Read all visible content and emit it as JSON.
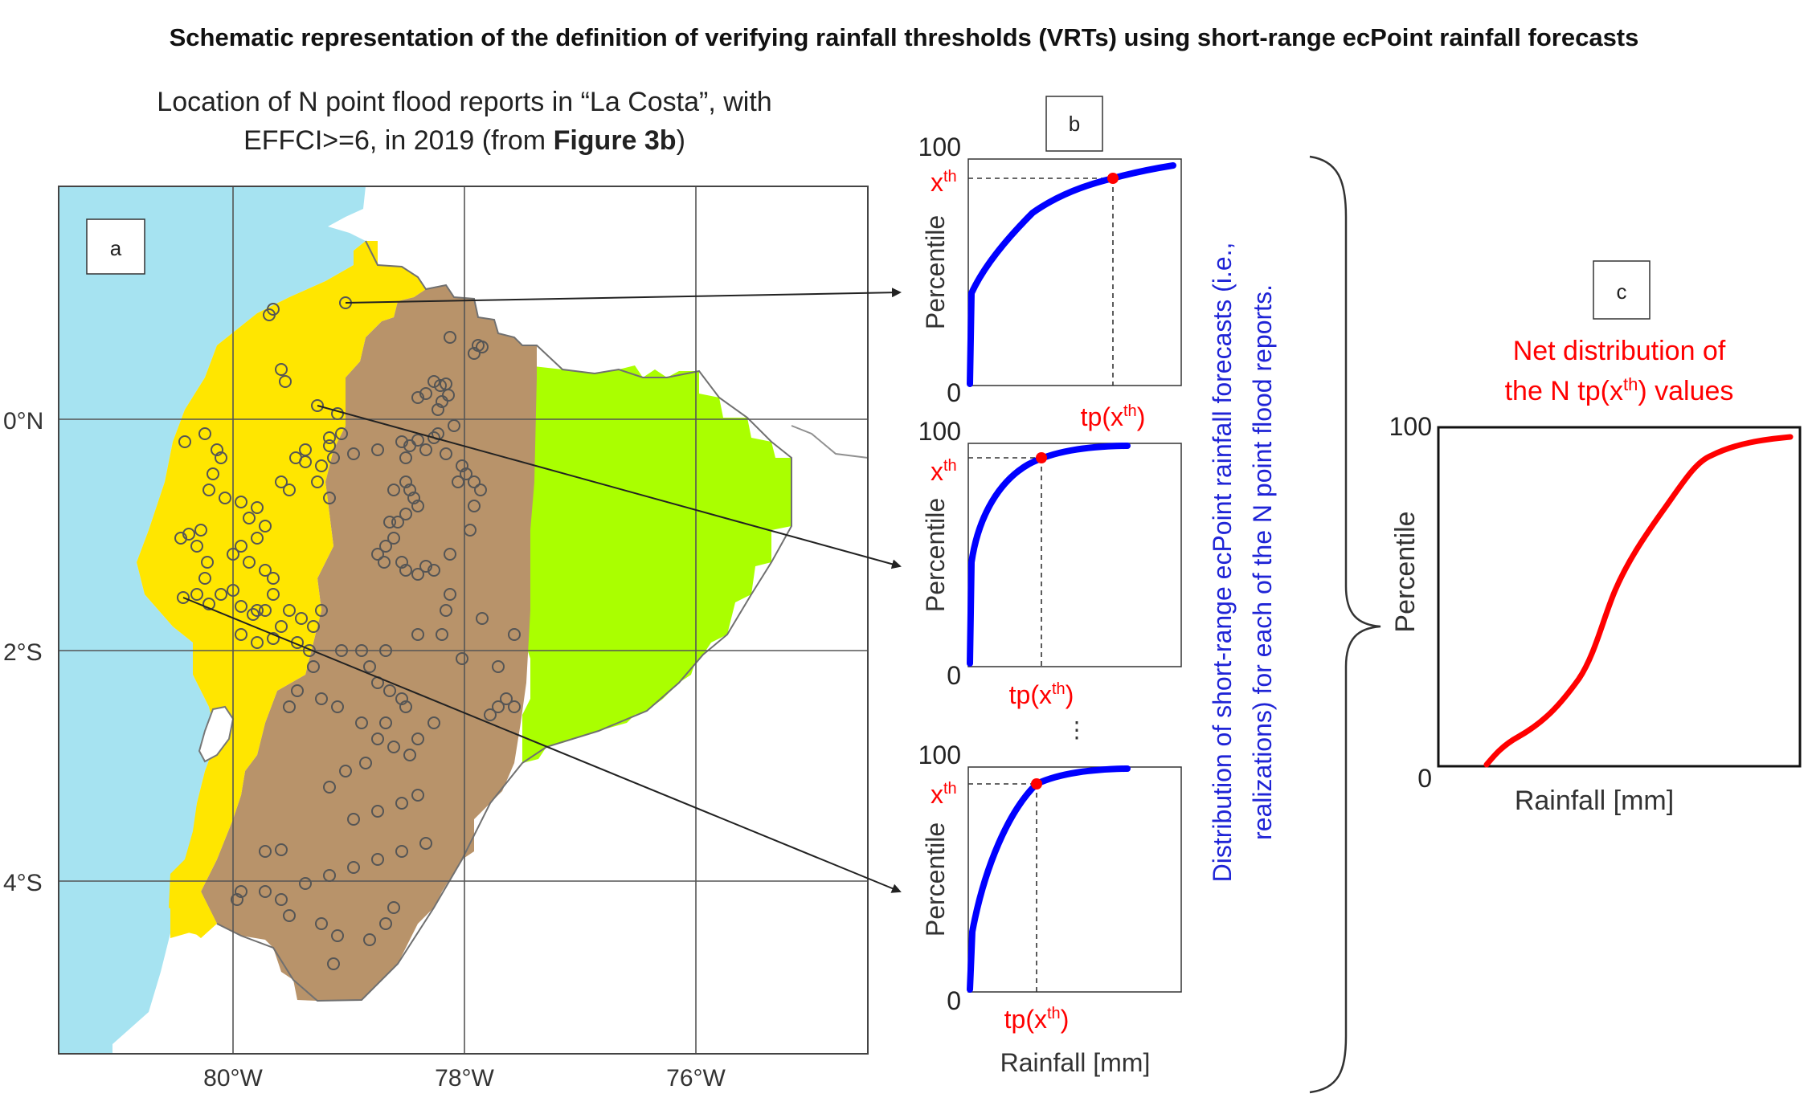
{
  "title": "Schematic representation of the definition of verifying rainfall thresholds (VRTs) using short-range ecPoint rainfall forecasts",
  "map": {
    "caption_line1": "Location of N point flood reports in “La Costa”, with",
    "caption_line2_prefix": "EFFCI>=6, in 2019 (from ",
    "caption_line2_bold": "Figure 3b",
    "caption_line2_suffix": ")",
    "panel_label": "a",
    "lat_labels": [
      "0°N",
      "2°S",
      "4°S"
    ],
    "lon_labels": [
      "80°W",
      "78°W",
      "76°W"
    ],
    "colors": {
      "ocean": "#a6e3f1",
      "costa": "#ffe600",
      "sierra": "#b8936a",
      "amazonia": "#aaff00",
      "land": "#ffffff"
    }
  },
  "panel_b": {
    "label": "b",
    "y_top": "100",
    "y_bottom": "0",
    "threshold_label": "x",
    "threshold_sup": "th",
    "value_label": "tp(x",
    "value_sup": "th",
    "value_close": ")",
    "ylabel": "Percentile",
    "xlabel": "Rainfall [mm]",
    "ellipsis": "⋮",
    "side_text_line1": "Distribution of short-range ecPoint rainfall forecasts (i.e.,",
    "side_text_line2": "realizations) for each of the N point flood reports.",
    "curve_color": "#0000ff",
    "marker_color": "#ff0000"
  },
  "panel_c": {
    "label": "c",
    "title_line1": "Net distribution of",
    "title_line2_prefix": "the N tp(x",
    "title_line2_sup": "th",
    "title_line2_suffix": ") values",
    "y_top": "100",
    "y_bottom": "0",
    "ylabel": "Percentile",
    "xlabel": "Rainfall [mm]",
    "curve_color": "#ff0000"
  }
}
